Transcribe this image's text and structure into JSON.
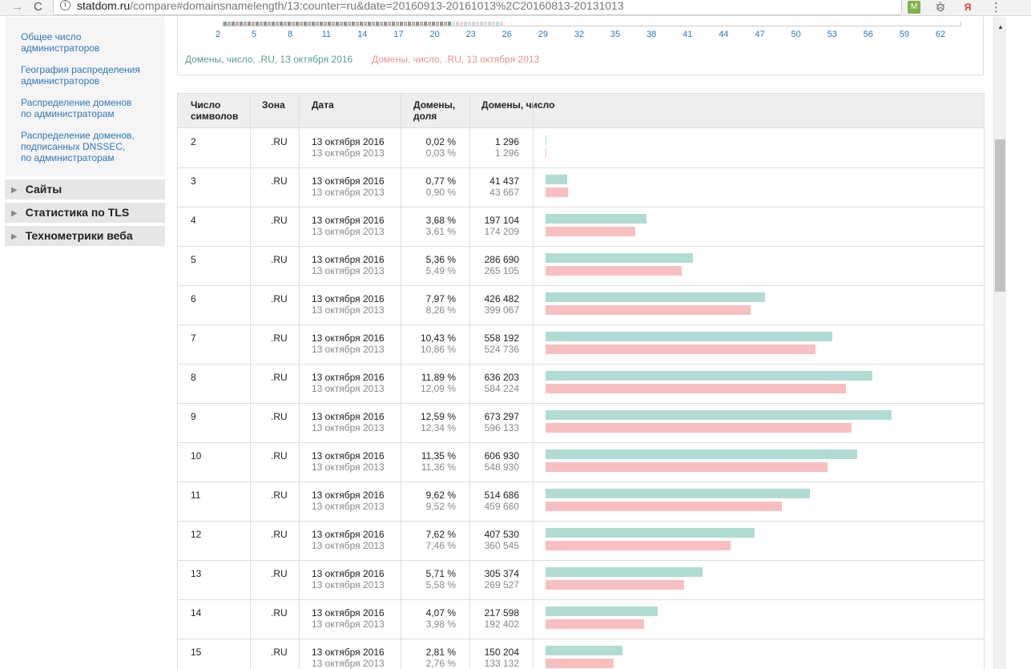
{
  "browser": {
    "back": "←",
    "forward": "→",
    "reload": "C",
    "url_host": "statdom.ru",
    "url_rest": "/compare#domainsnamelength/13:counter=ru&date=20160913-20161013%2C20160813-20131013",
    "star": "☆",
    "ext1": "M",
    "ext2": "⊙",
    "ext3": "Я",
    "menu": "⋮"
  },
  "sidebar": {
    "links": [
      {
        "l1": "Общее число",
        "l2": "администраторов",
        "l3": ""
      },
      {
        "l1": "География распределения",
        "l2": "администраторов",
        "l3": ""
      },
      {
        "l1": "Распределение доменов",
        "l2": "по администраторам",
        "l3": ""
      },
      {
        "l1": "Распределение доменов,",
        "l2": "подписанных DNSSEC,",
        "l3": "по администраторам"
      }
    ],
    "sections": [
      "Сайты",
      "Статистика по TLS",
      "Технометрики веба"
    ],
    "section_icon": "triangle-right-icon"
  },
  "chart_strip": {
    "xticks": [
      "2",
      "5",
      "8",
      "11",
      "14",
      "17",
      "20",
      "23",
      "26",
      "29",
      "32",
      "35",
      "38",
      "41",
      "44",
      "47",
      "50",
      "53",
      "56",
      "59",
      "62"
    ],
    "legend_a": "Домены, число, .RU, 13 октября 2016",
    "legend_b": "Домены, число, .RU, 13 октября 2013",
    "color_a": "#5a9f92",
    "color_b": "#e59393"
  },
  "table": {
    "headers": {
      "len_1": "Число",
      "len_2": "символов",
      "zone": "Зона",
      "date": "Дата",
      "share_1": "Домены,",
      "share_2": "доля",
      "count": "Домены, число"
    },
    "colors": {
      "a": "#b0dcd3",
      "b": "#f8bfc1"
    },
    "max_count": 673297,
    "rows": [
      {
        "len": "2",
        "zone": ".RU",
        "date_a": "13 октября 2016",
        "date_b": "13 октября 2013",
        "share_a": "0,02 %",
        "share_b": "0,03 %",
        "count_a": "1 296",
        "count_b": "1 296",
        "va": 1296,
        "vb": 1296
      },
      {
        "len": "3",
        "zone": ".RU",
        "date_a": "13 октября 2016",
        "date_b": "13 октября 2013",
        "share_a": "0,77 %",
        "share_b": "0,90 %",
        "count_a": "41 437",
        "count_b": "43 667",
        "va": 41437,
        "vb": 43667
      },
      {
        "len": "4",
        "zone": ".RU",
        "date_a": "13 октября 2016",
        "date_b": "13 октября 2013",
        "share_a": "3,68 %",
        "share_b": "3,61 %",
        "count_a": "197 104",
        "count_b": "174 209",
        "va": 197104,
        "vb": 174209
      },
      {
        "len": "5",
        "zone": ".RU",
        "date_a": "13 октября 2016",
        "date_b": "13 октября 2013",
        "share_a": "5,36 %",
        "share_b": "5,49 %",
        "count_a": "286 690",
        "count_b": "265 105",
        "va": 286690,
        "vb": 265105
      },
      {
        "len": "6",
        "zone": ".RU",
        "date_a": "13 октября 2016",
        "date_b": "13 октября 2013",
        "share_a": "7,97 %",
        "share_b": "8,26 %",
        "count_a": "426 482",
        "count_b": "399 067",
        "va": 426482,
        "vb": 399067
      },
      {
        "len": "7",
        "zone": ".RU",
        "date_a": "13 октября 2016",
        "date_b": "13 октября 2013",
        "share_a": "10,43 %",
        "share_b": "10,86 %",
        "count_a": "558 192",
        "count_b": "524 736",
        "va": 558192,
        "vb": 524736
      },
      {
        "len": "8",
        "zone": ".RU",
        "date_a": "13 октября 2016",
        "date_b": "13 октября 2013",
        "share_a": "11,89 %",
        "share_b": "12,09 %",
        "count_a": "636 203",
        "count_b": "584 224",
        "va": 636203,
        "vb": 584224
      },
      {
        "len": "9",
        "zone": ".RU",
        "date_a": "13 октября 2016",
        "date_b": "13 октября 2013",
        "share_a": "12,59 %",
        "share_b": "12,34 %",
        "count_a": "673 297",
        "count_b": "596 133",
        "va": 673297,
        "vb": 596133
      },
      {
        "len": "10",
        "zone": ".RU",
        "date_a": "13 октября 2016",
        "date_b": "13 октября 2013",
        "share_a": "11,35 %",
        "share_b": "11,36 %",
        "count_a": "606 930",
        "count_b": "548 930",
        "va": 606930,
        "vb": 548930
      },
      {
        "len": "11",
        "zone": ".RU",
        "date_a": "13 октября 2016",
        "date_b": "13 октября 2013",
        "share_a": "9,62 %",
        "share_b": "9,52 %",
        "count_a": "514 686",
        "count_b": "459 660",
        "va": 514686,
        "vb": 459660
      },
      {
        "len": "12",
        "zone": ".RU",
        "date_a": "13 октября 2016",
        "date_b": "13 октября 2013",
        "share_a": "7,62 %",
        "share_b": "7,46 %",
        "count_a": "407 530",
        "count_b": "360 545",
        "va": 407530,
        "vb": 360545
      },
      {
        "len": "13",
        "zone": ".RU",
        "date_a": "13 октября 2016",
        "date_b": "13 октября 2013",
        "share_a": "5,71 %",
        "share_b": "5,58 %",
        "count_a": "305 374",
        "count_b": "269 527",
        "va": 305374,
        "vb": 269527
      },
      {
        "len": "14",
        "zone": ".RU",
        "date_a": "13 октября 2016",
        "date_b": "13 октября 2013",
        "share_a": "4,07 %",
        "share_b": "3,98 %",
        "count_a": "217 598",
        "count_b": "192 402",
        "va": 217598,
        "vb": 192402
      },
      {
        "len": "15",
        "zone": ".RU",
        "date_a": "13 октября 2016",
        "date_b": "13 октября 2013",
        "share_a": "2,81 %",
        "share_b": "2,76 %",
        "count_a": "150 204",
        "count_b": "133 132",
        "va": 150204,
        "vb": 133132
      }
    ]
  }
}
